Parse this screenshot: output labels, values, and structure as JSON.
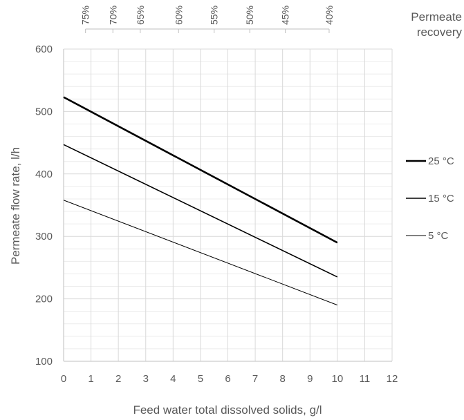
{
  "chart_data": {
    "type": "line",
    "title": "",
    "xlabel": "Feed water total dissolved solids, g/l",
    "ylabel": "Permeate flow rate, l/h",
    "xlim": [
      0,
      12
    ],
    "ylim": [
      100,
      600
    ],
    "x_ticks": [
      0,
      1,
      2,
      3,
      4,
      5,
      6,
      7,
      8,
      9,
      10,
      11,
      12
    ],
    "y_ticks": [
      100,
      200,
      300,
      400,
      500,
      600
    ],
    "grid": true,
    "legend_position": "right",
    "series": [
      {
        "name": "25 °C",
        "x": [
          0,
          10
        ],
        "y": [
          523,
          290
        ],
        "stroke_width": 2.6
      },
      {
        "name": "15 °C",
        "x": [
          0,
          10
        ],
        "y": [
          447,
          235
        ],
        "stroke_width": 1.6
      },
      {
        "name": "5 °C",
        "x": [
          0,
          10
        ],
        "y": [
          358,
          190
        ],
        "stroke_width": 1.0
      }
    ],
    "top_axis": {
      "title_lines": [
        "Permeate",
        "recovery"
      ],
      "ticks": [
        {
          "x": 0.8,
          "label": "75%"
        },
        {
          "x": 1.8,
          "label": "70%"
        },
        {
          "x": 2.8,
          "label": "65%"
        },
        {
          "x": 4.2,
          "label": "60%"
        },
        {
          "x": 5.5,
          "label": "55%"
        },
        {
          "x": 6.8,
          "label": "50%"
        },
        {
          "x": 8.1,
          "label": "45%"
        },
        {
          "x": 9.7,
          "label": "40%"
        }
      ]
    }
  },
  "colors": {
    "line": "#000000",
    "grid": "#d9d9d9",
    "axis": "#bfbfbf",
    "text": "#595959"
  }
}
